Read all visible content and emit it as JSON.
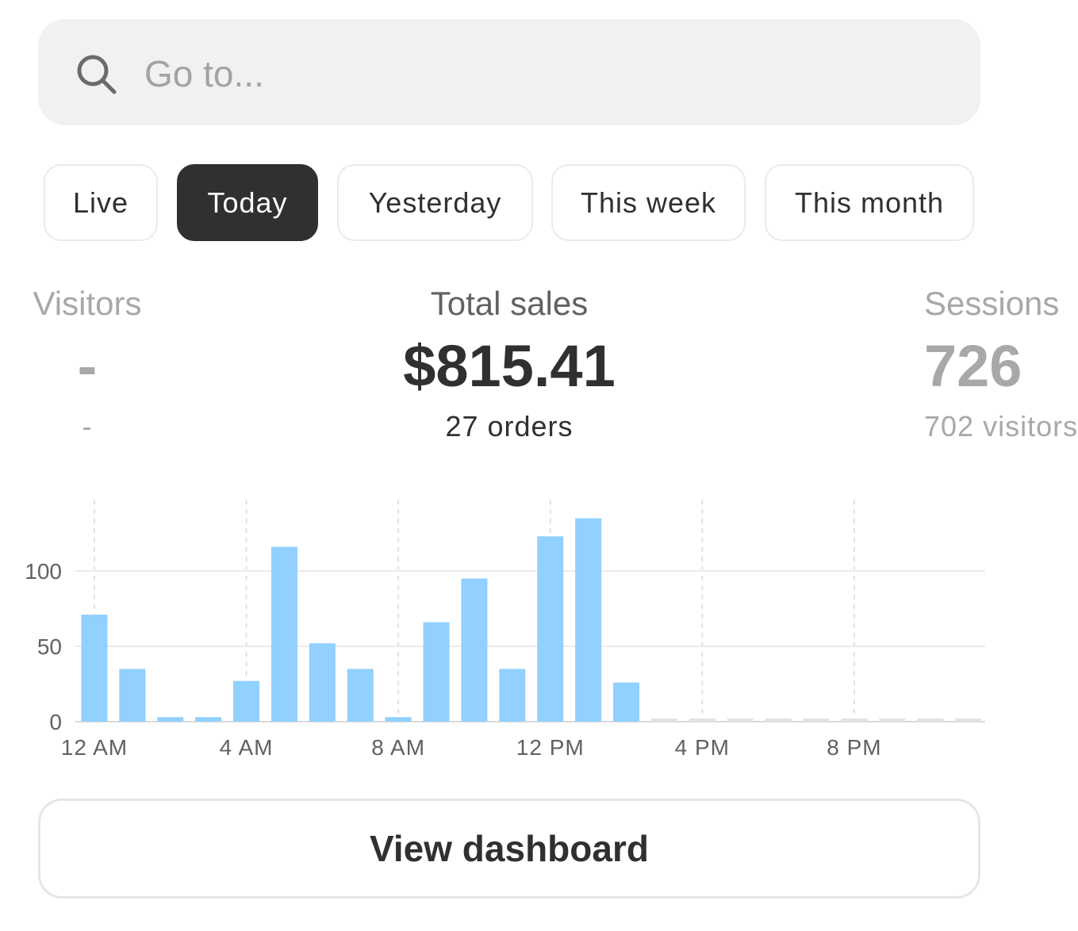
{
  "search": {
    "placeholder": "Go to..."
  },
  "tabs": [
    {
      "label": "Live",
      "active": false
    },
    {
      "label": "Today",
      "active": true
    },
    {
      "label": "Yesterday",
      "active": false
    },
    {
      "label": "This week",
      "active": false
    },
    {
      "label": "This month",
      "active": false
    }
  ],
  "metrics": {
    "visitors": {
      "label": "Visitors",
      "value": "-",
      "sub": "-"
    },
    "total_sales": {
      "label": "Total sales",
      "value": "$815.41",
      "sub": "27 orders"
    },
    "sessions": {
      "label": "Sessions",
      "value": "726",
      "sub": "702 visitors"
    }
  },
  "chart_data": {
    "type": "bar",
    "title": "",
    "xlabel": "",
    "ylabel": "",
    "categories": [
      "12 AM",
      "1 AM",
      "2 AM",
      "3 AM",
      "4 AM",
      "5 AM",
      "6 AM",
      "7 AM",
      "8 AM",
      "9 AM",
      "10 AM",
      "11 AM",
      "12 PM",
      "1 PM",
      "2 PM",
      "3 PM",
      "4 PM",
      "5 PM",
      "6 PM",
      "7 PM",
      "8 PM",
      "9 PM",
      "10 PM",
      "11 PM"
    ],
    "x_tick_labels": [
      "12 AM",
      "4 AM",
      "8 AM",
      "12 PM",
      "4 PM",
      "8 PM"
    ],
    "x_tick_indices": [
      0,
      4,
      8,
      12,
      16,
      20
    ],
    "y_ticks": [
      0,
      50,
      100
    ],
    "ylim": [
      0,
      147
    ],
    "values": [
      71,
      35,
      3,
      3,
      27,
      116,
      52,
      35,
      3,
      66,
      95,
      35,
      123,
      135,
      26,
      null,
      null,
      null,
      null,
      null,
      null,
      null,
      null,
      null
    ],
    "bar_color": "#91d0ff",
    "future_color": "#e3e3e3"
  },
  "actions": {
    "view_dashboard": "View dashboard"
  }
}
